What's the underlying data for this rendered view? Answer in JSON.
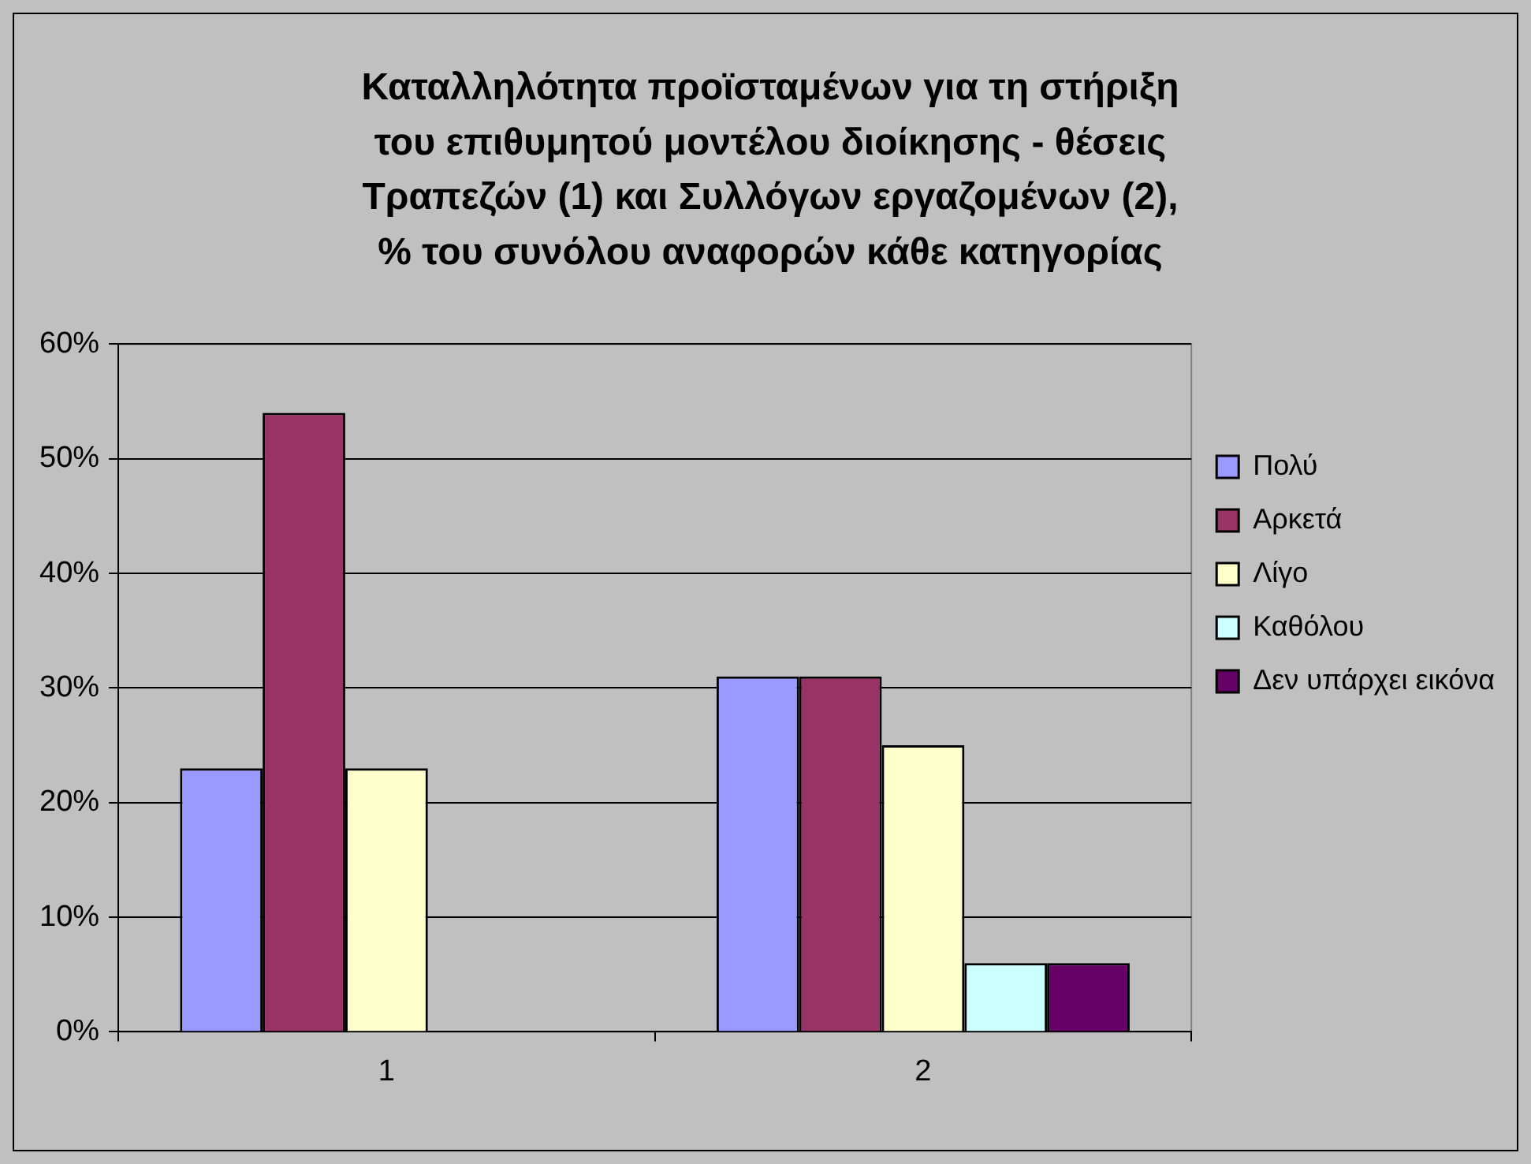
{
  "chart_data": {
    "type": "bar",
    "title": "Καταλληλότητα προϊσταμένων για τη στήριξη\nτου επιθυμητού μοντέλου διοίκησης - θέσεις\nΤραπεζών (1) και Συλλόγων εργαζομένων (2),\n% του συνόλου αναφορών κάθε κατηγορίας",
    "categories": [
      "1",
      "2"
    ],
    "series": [
      {
        "name": "Πολύ",
        "color": "#9999ff",
        "values": [
          23,
          31
        ]
      },
      {
        "name": "Αρκετά",
        "color": "#993366",
        "values": [
          54,
          31
        ]
      },
      {
        "name": "Λίγο",
        "color": "#ffffcc",
        "values": [
          23,
          25
        ]
      },
      {
        "name": "Καθόλου",
        "color": "#ccffff",
        "values": [
          0,
          6
        ]
      },
      {
        "name": "Δεν υπάρχει εικόνα",
        "color": "#660066",
        "values": [
          0,
          6
        ]
      }
    ],
    "ylim": [
      0,
      60
    ],
    "yticks": [
      {
        "value": 0,
        "label": "0%"
      },
      {
        "value": 10,
        "label": "10%"
      },
      {
        "value": 20,
        "label": "20%"
      },
      {
        "value": 30,
        "label": "30%"
      },
      {
        "value": 40,
        "label": "40%"
      },
      {
        "value": 50,
        "label": "50%"
      },
      {
        "value": 60,
        "label": "60%"
      }
    ],
    "grid": "y",
    "legend": "right"
  }
}
